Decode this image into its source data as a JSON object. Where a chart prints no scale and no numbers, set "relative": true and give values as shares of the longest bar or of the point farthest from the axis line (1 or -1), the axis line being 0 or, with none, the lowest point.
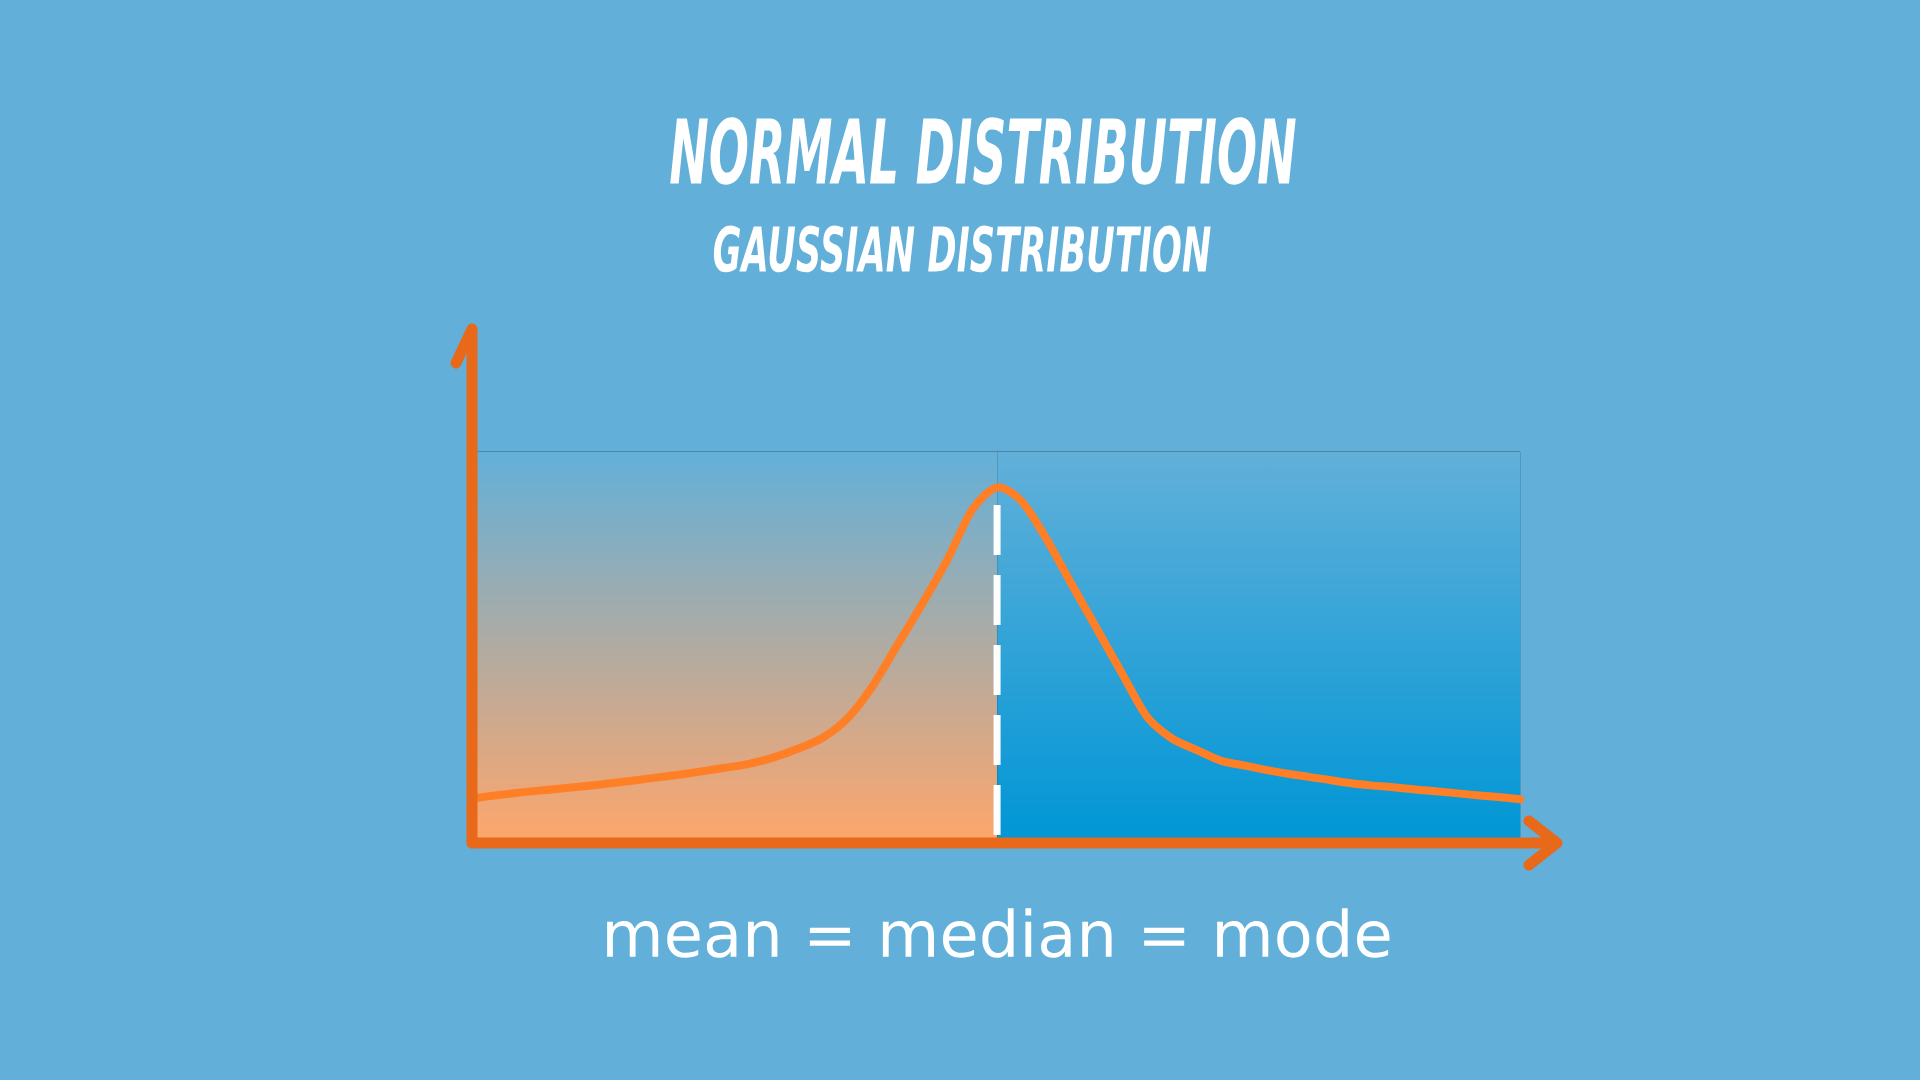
{
  "chart_data": {
    "type": "line",
    "title": "NORMAL DISTRIBUTION",
    "subtitle": "GAUSSIAN DISTRIBUTION",
    "relative": true,
    "categories": [
      null,
      null,
      null,
      null,
      null,
      null,
      null,
      null,
      null,
      null,
      null,
      null,
      null,
      null,
      null,
      null,
      null,
      null,
      null,
      null,
      null,
      null,
      null,
      null,
      null,
      null,
      null,
      null,
      null,
      null,
      null,
      null,
      null,
      null,
      null,
      null,
      null,
      null,
      null,
      null,
      null,
      null,
      null
    ],
    "series": [
      {
        "color": "#ff7f27",
        "values": [
          0.126,
          0.135,
          0.143,
          0.15,
          0.157,
          0.164,
          0.172,
          0.181,
          0.19,
          0.2,
          0.211,
          0.222,
          0.24,
          0.265,
          0.296,
          0.351,
          0.441,
          0.557,
          0.673,
          0.796,
          0.937,
          1.0,
          0.96,
          0.853,
          0.727,
          0.603,
          0.479,
          0.357,
          0.295,
          0.262,
          0.231,
          0.217,
          0.203,
          0.191,
          0.181,
          0.17,
          0.162,
          0.156,
          0.149,
          0.143,
          0.136,
          0.13,
          0.123
        ]
      }
    ],
    "annotations": [
      "mean = median = mode"
    ]
  }
}
